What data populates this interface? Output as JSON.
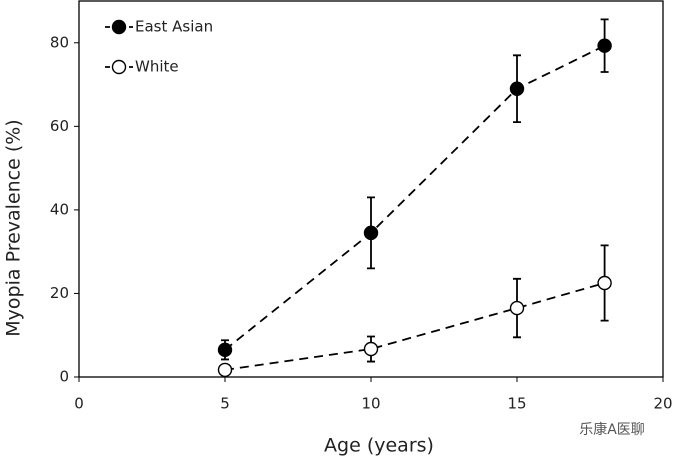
{
  "chart_data": {
    "type": "line",
    "x_label": "Age (years)",
    "y_label": "Myopia Prevalence (%)",
    "xlim": [
      0,
      20
    ],
    "xticks": [
      0,
      5,
      10,
      15,
      20
    ],
    "ylim": [
      0,
      90
    ],
    "yticks": [
      0,
      20,
      40,
      60,
      80
    ],
    "x": [
      5,
      10,
      15,
      18
    ],
    "series": [
      {
        "name": "East Asian",
        "color": "#000000",
        "marker_fill": "#000000",
        "values": [
          6.5,
          34.5,
          69,
          79.3
        ],
        "errors": [
          2.3,
          8.5,
          8,
          6.3
        ]
      },
      {
        "name": "White",
        "color": "#000000",
        "marker_fill": "#ffffff",
        "values": [
          1.7,
          6.7,
          16.5,
          22.5
        ],
        "errors": [
          0,
          3,
          7,
          9
        ]
      }
    ],
    "line_style": "dashed",
    "legend": "top-left",
    "grid": false,
    "watermark": "乐康A医聊"
  }
}
